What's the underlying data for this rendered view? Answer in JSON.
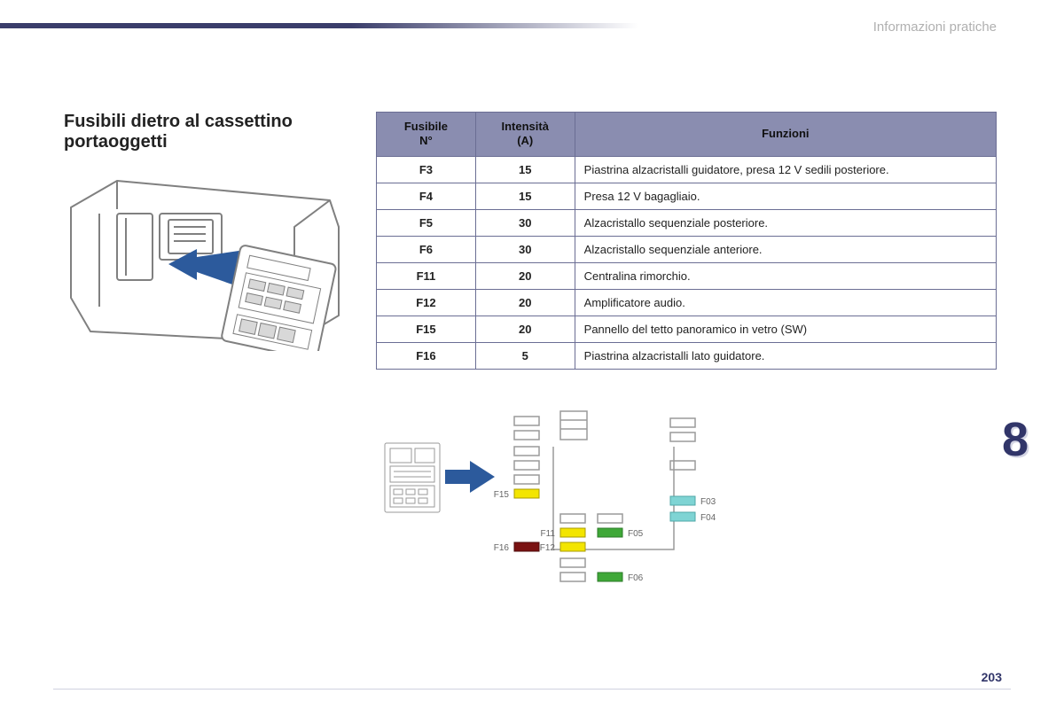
{
  "header": {
    "category": "Informazioni pratiche"
  },
  "section": {
    "title": "Fusibili dietro al cassettino portaoggetti",
    "number": "8"
  },
  "page_number": "203",
  "colors": {
    "accent": "#313569",
    "table_header_bg": "#8a8db0",
    "table_border": "#6b6e94",
    "arrow": "#2c5a9c",
    "illustration_stroke": "#808080",
    "fuse_yellow": "#f3e500",
    "fuse_green": "#3fa838",
    "fuse_cyan": "#7fd4d4",
    "fuse_red_dark": "#7a1212",
    "fuse_empty_stroke": "#9a9a9a",
    "diagram_label": "#666666"
  },
  "fuse_table": {
    "columns": [
      "Fusibile\nN°",
      "Intensità\n(A)",
      "Funzioni"
    ],
    "col_widths_pct": [
      16,
      16,
      68
    ],
    "rows": [
      [
        "F3",
        "15",
        "Piastrina alzacristalli guidatore, presa 12 V sedili posteriore."
      ],
      [
        "F4",
        "15",
        "Presa 12 V bagagliaio."
      ],
      [
        "F5",
        "30",
        "Alzacristallo sequenziale posteriore."
      ],
      [
        "F6",
        "30",
        "Alzacristallo sequenziale anteriore."
      ],
      [
        "F11",
        "20",
        "Centralina rimorchio."
      ],
      [
        "F12",
        "20",
        "Amplificatore audio."
      ],
      [
        "F15",
        "20",
        "Pannello del tetto panoramico in vetro (SW)"
      ],
      [
        "F16",
        "5",
        "Piastrina alzacristalli lato guidatore."
      ]
    ]
  },
  "fuse_diagram": {
    "fuse_w": 28,
    "fuse_h": 10,
    "labels": {
      "F15": "F15",
      "F11": "F11",
      "F12": "F12",
      "F16": "F16",
      "F03": "F03",
      "F04": "F04",
      "F05": "F05",
      "F06": "F06"
    }
  }
}
